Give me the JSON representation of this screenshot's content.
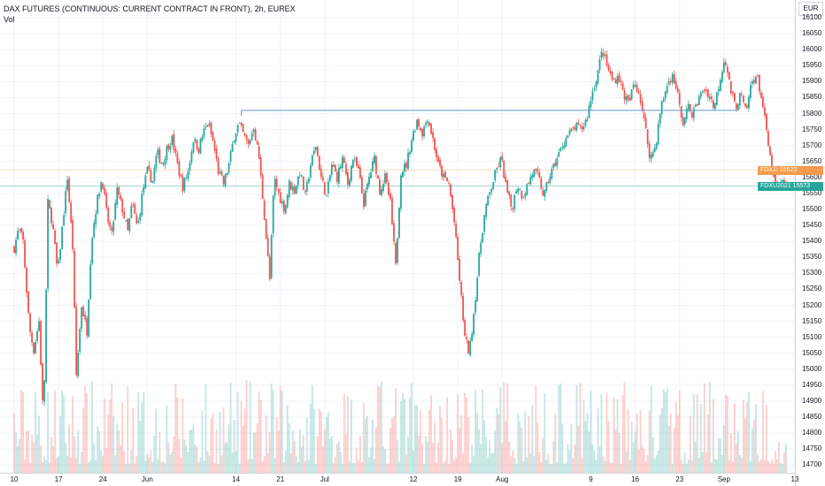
{
  "chart_data": {
    "type": "candlestick",
    "title": "DAX FUTURES (CONTINUOUS: CURRENT CONTRACT IN FRONT), 2h, EUREX",
    "volume_label": "Vol",
    "currency": "EUR",
    "y_ticks": [
      16100,
      16050,
      16000,
      15950,
      15900,
      15850,
      15800,
      15750,
      15700,
      15650,
      15600,
      15550,
      15500,
      15450,
      15400,
      15350,
      15300,
      15250,
      15200,
      15150,
      15100,
      15050,
      15000,
      14950,
      14900,
      14850,
      14800,
      14750,
      14700
    ],
    "ylim": [
      14690,
      16125
    ],
    "x_ticks": [
      "10",
      "17",
      "24",
      "Jun",
      "14",
      "21",
      "Jul",
      "12",
      "19",
      "Aug",
      "9",
      "16",
      "23",
      "Sep",
      "13"
    ],
    "x_tick_day_index": [
      0,
      5,
      10,
      15,
      25,
      30,
      35,
      45,
      50,
      55,
      65,
      70,
      75,
      80,
      88
    ],
    "close_path": [
      {
        "d": 0,
        "v": 15380
      },
      {
        "d": 0.5,
        "v": 15440
      },
      {
        "d": 1,
        "v": 15400
      },
      {
        "d": 1.7,
        "v": 15130
      },
      {
        "d": 2.2,
        "v": 15060
      },
      {
        "d": 2.8,
        "v": 15150
      },
      {
        "d": 3.3,
        "v": 14830
      },
      {
        "d": 3.8,
        "v": 15520
      },
      {
        "d": 4.3,
        "v": 15460
      },
      {
        "d": 4.9,
        "v": 15300
      },
      {
        "d": 5.4,
        "v": 15440
      },
      {
        "d": 6,
        "v": 15600
      },
      {
        "d": 6.6,
        "v": 15380
      },
      {
        "d": 7,
        "v": 14980
      },
      {
        "d": 7.6,
        "v": 15200
      },
      {
        "d": 8.2,
        "v": 15120
      },
      {
        "d": 8.7,
        "v": 15400
      },
      {
        "d": 9.3,
        "v": 15520
      },
      {
        "d": 9.9,
        "v": 15600
      },
      {
        "d": 10.5,
        "v": 15470
      },
      {
        "d": 11,
        "v": 15420
      },
      {
        "d": 11.6,
        "v": 15560
      },
      {
        "d": 12.2,
        "v": 15500
      },
      {
        "d": 12.8,
        "v": 15430
      },
      {
        "d": 13.3,
        "v": 15520
      },
      {
        "d": 13.9,
        "v": 15440
      },
      {
        "d": 14.5,
        "v": 15560
      },
      {
        "d": 15,
        "v": 15620
      },
      {
        "d": 15.6,
        "v": 15590
      },
      {
        "d": 16.1,
        "v": 15680
      },
      {
        "d": 16.7,
        "v": 15640
      },
      {
        "d": 17.3,
        "v": 15700
      },
      {
        "d": 17.8,
        "v": 15720
      },
      {
        "d": 18.4,
        "v": 15640
      },
      {
        "d": 19,
        "v": 15570
      },
      {
        "d": 19.6,
        "v": 15620
      },
      {
        "d": 20.2,
        "v": 15720
      },
      {
        "d": 20.8,
        "v": 15690
      },
      {
        "d": 21.3,
        "v": 15740
      },
      {
        "d": 21.9,
        "v": 15770
      },
      {
        "d": 22.5,
        "v": 15700
      },
      {
        "d": 23,
        "v": 15620
      },
      {
        "d": 23.6,
        "v": 15580
      },
      {
        "d": 24.2,
        "v": 15640
      },
      {
        "d": 24.8,
        "v": 15730
      },
      {
        "d": 25.3,
        "v": 15770
      },
      {
        "d": 25.9,
        "v": 15730
      },
      {
        "d": 26.4,
        "v": 15700
      },
      {
        "d": 27,
        "v": 15760
      },
      {
        "d": 27.6,
        "v": 15660
      },
      {
        "d": 28.2,
        "v": 15480
      },
      {
        "d": 28.8,
        "v": 15280
      },
      {
        "d": 29.3,
        "v": 15600
      },
      {
        "d": 29.9,
        "v": 15540
      },
      {
        "d": 30.5,
        "v": 15500
      },
      {
        "d": 31,
        "v": 15580
      },
      {
        "d": 31.6,
        "v": 15560
      },
      {
        "d": 32.2,
        "v": 15620
      },
      {
        "d": 32.8,
        "v": 15540
      },
      {
        "d": 33.4,
        "v": 15640
      },
      {
        "d": 34,
        "v": 15700
      },
      {
        "d": 34.6,
        "v": 15600
      },
      {
        "d": 35.2,
        "v": 15540
      },
      {
        "d": 35.8,
        "v": 15640
      },
      {
        "d": 36.4,
        "v": 15600
      },
      {
        "d": 37,
        "v": 15660
      },
      {
        "d": 37.6,
        "v": 15580
      },
      {
        "d": 38.2,
        "v": 15660
      },
      {
        "d": 38.8,
        "v": 15620
      },
      {
        "d": 39.4,
        "v": 15520
      },
      {
        "d": 40,
        "v": 15600
      },
      {
        "d": 40.6,
        "v": 15660
      },
      {
        "d": 41.2,
        "v": 15560
      },
      {
        "d": 41.8,
        "v": 15600
      },
      {
        "d": 42.4,
        "v": 15520
      },
      {
        "d": 43,
        "v": 15320
      },
      {
        "d": 43.6,
        "v": 15620
      },
      {
        "d": 44.2,
        "v": 15640
      },
      {
        "d": 44.8,
        "v": 15720
      },
      {
        "d": 45.4,
        "v": 15780
      },
      {
        "d": 46,
        "v": 15740
      },
      {
        "d": 46.6,
        "v": 15790
      },
      {
        "d": 47.2,
        "v": 15720
      },
      {
        "d": 47.8,
        "v": 15640
      },
      {
        "d": 48.4,
        "v": 15600
      },
      {
        "d": 49,
        "v": 15580
      },
      {
        "d": 49.6,
        "v": 15460
      },
      {
        "d": 50.2,
        "v": 15280
      },
      {
        "d": 50.8,
        "v": 15100
      },
      {
        "d": 51.3,
        "v": 15050
      },
      {
        "d": 51.9,
        "v": 15200
      },
      {
        "d": 52.5,
        "v": 15380
      },
      {
        "d": 53.1,
        "v": 15500
      },
      {
        "d": 53.7,
        "v": 15560
      },
      {
        "d": 54.3,
        "v": 15620
      },
      {
        "d": 54.9,
        "v": 15660
      },
      {
        "d": 55.5,
        "v": 15560
      },
      {
        "d": 56.1,
        "v": 15500
      },
      {
        "d": 56.7,
        "v": 15580
      },
      {
        "d": 57.3,
        "v": 15540
      },
      {
        "d": 57.9,
        "v": 15580
      },
      {
        "d": 58.5,
        "v": 15620
      },
      {
        "d": 59.1,
        "v": 15600
      },
      {
        "d": 59.7,
        "v": 15540
      },
      {
        "d": 60.3,
        "v": 15600
      },
      {
        "d": 60.9,
        "v": 15640
      },
      {
        "d": 61.5,
        "v": 15680
      },
      {
        "d": 62.1,
        "v": 15720
      },
      {
        "d": 62.7,
        "v": 15740
      },
      {
        "d": 63.3,
        "v": 15760
      },
      {
        "d": 63.9,
        "v": 15750
      },
      {
        "d": 64.5,
        "v": 15780
      },
      {
        "d": 65.1,
        "v": 15860
      },
      {
        "d": 65.7,
        "v": 15920
      },
      {
        "d": 66.3,
        "v": 16000
      },
      {
        "d": 66.9,
        "v": 15940
      },
      {
        "d": 67.5,
        "v": 15900
      },
      {
        "d": 68.1,
        "v": 15920
      },
      {
        "d": 68.7,
        "v": 15860
      },
      {
        "d": 69.3,
        "v": 15830
      },
      {
        "d": 69.9,
        "v": 15900
      },
      {
        "d": 70.5,
        "v": 15860
      },
      {
        "d": 71.1,
        "v": 15760
      },
      {
        "d": 71.7,
        "v": 15660
      },
      {
        "d": 72.3,
        "v": 15700
      },
      {
        "d": 72.9,
        "v": 15820
      },
      {
        "d": 73.5,
        "v": 15880
      },
      {
        "d": 74.1,
        "v": 15920
      },
      {
        "d": 74.7,
        "v": 15880
      },
      {
        "d": 75.3,
        "v": 15760
      },
      {
        "d": 75.9,
        "v": 15820
      },
      {
        "d": 76.5,
        "v": 15800
      },
      {
        "d": 77.1,
        "v": 15840
      },
      {
        "d": 77.7,
        "v": 15880
      },
      {
        "d": 78.3,
        "v": 15860
      },
      {
        "d": 78.9,
        "v": 15820
      },
      {
        "d": 79.5,
        "v": 15900
      },
      {
        "d": 80.1,
        "v": 15980
      },
      {
        "d": 80.7,
        "v": 15880
      },
      {
        "d": 81.3,
        "v": 15820
      },
      {
        "d": 81.9,
        "v": 15860
      },
      {
        "d": 82.5,
        "v": 15800
      },
      {
        "d": 83.1,
        "v": 15900
      },
      {
        "d": 83.7,
        "v": 15920
      },
      {
        "d": 84.3,
        "v": 15840
      },
      {
        "d": 84.9,
        "v": 15720
      },
      {
        "d": 85.5,
        "v": 15600
      },
      {
        "d": 86.1,
        "v": 15560
      },
      {
        "d": 86.7,
        "v": 15590
      },
      {
        "d": 87.2,
        "v": 15575
      }
    ],
    "resistance_line": {
      "value": 15810,
      "from_day": 25.6,
      "to_day": 81.5
    },
    "price_lines": [
      {
        "label": "FDX1!",
        "value": 15623,
        "text": "15623",
        "color": "#f79a4b"
      },
      {
        "label": "FDXU2021",
        "value": 15573,
        "text": "15573",
        "color": "#26a69a"
      }
    ],
    "colors": {
      "up": "#26a69a",
      "down": "#ef5350",
      "grid": "#f0f3fa",
      "resistance": "#5b9bd5"
    }
  }
}
